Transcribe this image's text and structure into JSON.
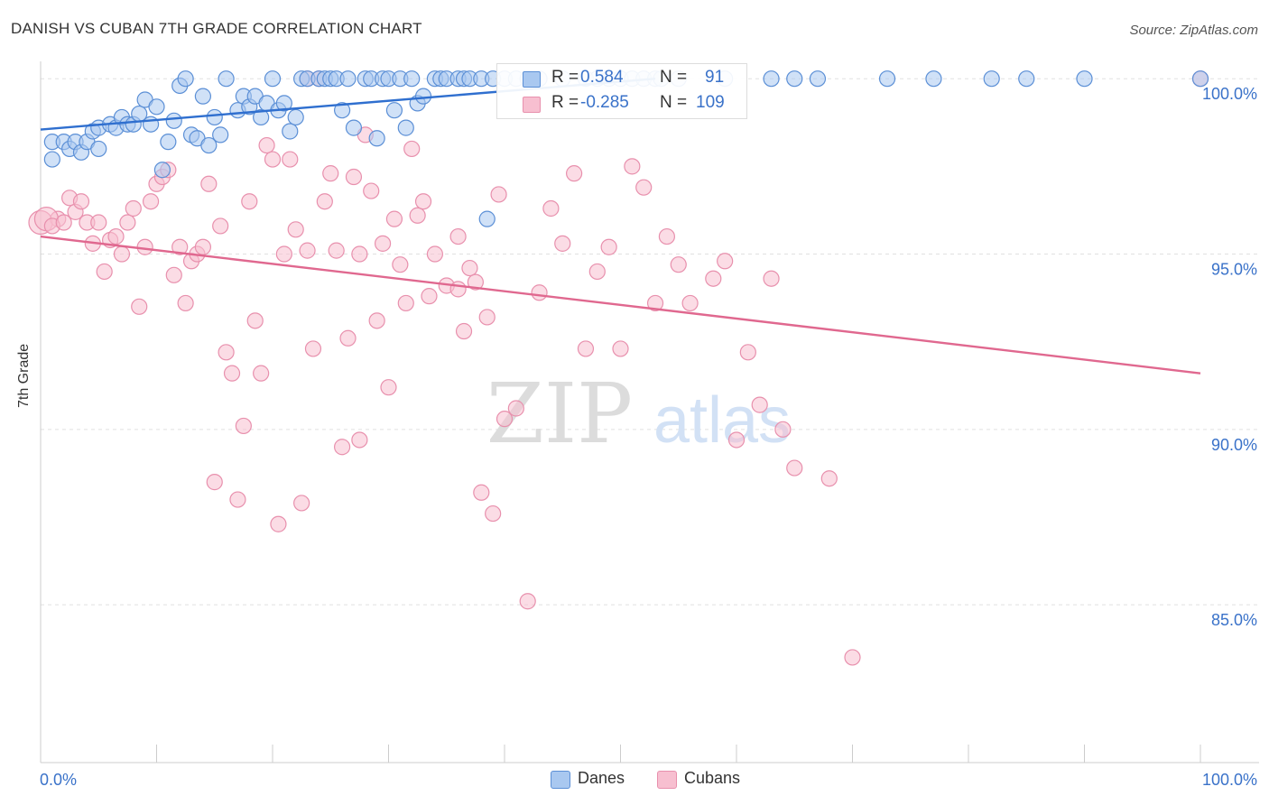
{
  "chart_data": {
    "type": "scatter",
    "title": "DANISH VS CUBAN 7TH GRADE CORRELATION CHART",
    "source": "Source: ZipAtlas.com",
    "xlabel": "",
    "ylabel": "7th Grade",
    "xlim": [
      0,
      100
    ],
    "ylim": [
      80.5,
      100.7
    ],
    "x_tick_labels": {
      "left": "0.0%",
      "right": "100.0%"
    },
    "y_ticks": [
      {
        "value": 100,
        "label": "100.0%"
      },
      {
        "value": 95,
        "label": "95.0%"
      },
      {
        "value": 90,
        "label": "90.0%"
      },
      {
        "value": 85,
        "label": "85.0%"
      }
    ],
    "watermark": {
      "zip": "ZIP",
      "atlas": "atlas"
    },
    "colors": {
      "danes_fill": "#a9c8f0",
      "danes_stroke": "#5b8fd6",
      "danes_line": "#2f6fcf",
      "cubans_fill": "#f7bfd0",
      "cubans_stroke": "#e890ad",
      "cubans_line": "#e0688f",
      "text_blue": "#3a72c9",
      "grid": "#e0e0e0"
    },
    "stats_legend": [
      {
        "r_label": "R =",
        "r_value": "0.584",
        "n_label": "N =",
        "n_value": "91"
      },
      {
        "r_label": "R =",
        "r_value": "-0.285",
        "n_label": "N =",
        "n_value": "109"
      }
    ],
    "series": [
      {
        "name": "Danes",
        "trend": {
          "x": [
            0,
            53
          ],
          "y": [
            98.55,
            100.0
          ]
        },
        "points": [
          [
            1,
            98.2
          ],
          [
            1,
            97.7
          ],
          [
            2,
            98.2
          ],
          [
            2.5,
            98.0
          ],
          [
            3,
            98.2
          ],
          [
            3.5,
            97.9
          ],
          [
            4,
            98.2
          ],
          [
            4.5,
            98.5
          ],
          [
            5,
            98.6
          ],
          [
            5,
            98.0
          ],
          [
            6,
            98.7
          ],
          [
            6.5,
            98.6
          ],
          [
            7,
            98.9
          ],
          [
            7.5,
            98.7
          ],
          [
            8,
            98.7
          ],
          [
            8.5,
            99.0
          ],
          [
            9,
            99.4
          ],
          [
            9.5,
            98.7
          ],
          [
            10,
            99.2
          ],
          [
            10.5,
            97.4
          ],
          [
            11,
            98.2
          ],
          [
            11.5,
            98.8
          ],
          [
            12,
            99.8
          ],
          [
            12.5,
            100
          ],
          [
            13,
            98.4
          ],
          [
            13.5,
            98.3
          ],
          [
            14,
            99.5
          ],
          [
            14.5,
            98.1
          ],
          [
            15,
            98.9
          ],
          [
            15.5,
            98.4
          ],
          [
            16,
            100
          ],
          [
            17,
            99.1
          ],
          [
            17.5,
            99.5
          ],
          [
            18,
            99.2
          ],
          [
            18.5,
            99.5
          ],
          [
            19,
            98.9
          ],
          [
            19.5,
            99.3
          ],
          [
            20,
            100
          ],
          [
            20.5,
            99.1
          ],
          [
            21,
            99.3
          ],
          [
            21.5,
            98.5
          ],
          [
            22,
            98.9
          ],
          [
            22.5,
            100
          ],
          [
            23,
            100
          ],
          [
            24,
            100
          ],
          [
            24.5,
            100
          ],
          [
            25,
            100
          ],
          [
            25.5,
            100
          ],
          [
            26,
            99.1
          ],
          [
            26.5,
            100
          ],
          [
            27,
            98.6
          ],
          [
            28,
            100
          ],
          [
            28.5,
            100
          ],
          [
            29,
            98.3
          ],
          [
            29.5,
            100
          ],
          [
            30,
            100
          ],
          [
            30.5,
            99.1
          ],
          [
            31,
            100
          ],
          [
            31.5,
            98.6
          ],
          [
            32,
            100
          ],
          [
            32.5,
            99.3
          ],
          [
            33,
            99.5
          ],
          [
            34,
            100
          ],
          [
            34.5,
            100
          ],
          [
            35,
            100
          ],
          [
            36,
            100
          ],
          [
            36.5,
            100
          ],
          [
            37,
            100
          ],
          [
            38,
            100
          ],
          [
            39,
            100
          ],
          [
            40,
            100
          ],
          [
            41,
            100
          ],
          [
            42,
            100
          ],
          [
            43,
            100
          ],
          [
            45,
            100
          ],
          [
            47,
            100
          ],
          [
            48,
            100
          ],
          [
            49,
            100
          ],
          [
            50,
            100
          ],
          [
            51,
            100
          ],
          [
            52,
            100
          ],
          [
            53,
            100
          ],
          [
            53.5,
            100
          ],
          [
            55,
            100
          ],
          [
            59,
            100
          ],
          [
            63,
            100
          ],
          [
            65,
            100
          ],
          [
            67,
            100
          ],
          [
            73,
            100
          ],
          [
            77,
            100
          ],
          [
            82,
            100
          ],
          [
            85,
            100
          ],
          [
            90,
            100
          ],
          [
            100,
            100
          ],
          [
            38.5,
            96.0
          ]
        ]
      },
      {
        "name": "Cubans",
        "trend": {
          "x": [
            0,
            100
          ],
          "y": [
            95.5,
            91.6
          ]
        },
        "points": [
          [
            0,
            95.9
          ],
          [
            1.5,
            96.0
          ],
          [
            2.5,
            96.6
          ],
          [
            3,
            96.2
          ],
          [
            3.5,
            96.5
          ],
          [
            4,
            95.9
          ],
          [
            4.5,
            95.3
          ],
          [
            5,
            95.9
          ],
          [
            5.5,
            94.5
          ],
          [
            6,
            95.4
          ],
          [
            6.5,
            95.5
          ],
          [
            7,
            95.0
          ],
          [
            7.5,
            95.9
          ],
          [
            8,
            96.3
          ],
          [
            8.5,
            93.5
          ],
          [
            9,
            95.2
          ],
          [
            9.5,
            96.5
          ],
          [
            10,
            97.0
          ],
          [
            10.5,
            97.2
          ],
          [
            11,
            97.4
          ],
          [
            11.5,
            94.4
          ],
          [
            12,
            95.2
          ],
          [
            12.5,
            93.6
          ],
          [
            13,
            94.8
          ],
          [
            13.5,
            95.0
          ],
          [
            14,
            95.2
          ],
          [
            14.5,
            97.0
          ],
          [
            15,
            88.5
          ],
          [
            15.5,
            95.8
          ],
          [
            16,
            92.2
          ],
          [
            16.5,
            91.6
          ],
          [
            17,
            88.0
          ],
          [
            17.5,
            90.1
          ],
          [
            18,
            96.5
          ],
          [
            18.5,
            93.1
          ],
          [
            19,
            91.6
          ],
          [
            19.5,
            98.1
          ],
          [
            20,
            97.7
          ],
          [
            20.5,
            87.3
          ],
          [
            21,
            95.0
          ],
          [
            21.5,
            97.7
          ],
          [
            22,
            95.7
          ],
          [
            22.5,
            87.9
          ],
          [
            23,
            100
          ],
          [
            23.5,
            92.3
          ],
          [
            24,
            100
          ],
          [
            24.5,
            96.5
          ],
          [
            25,
            97.3
          ],
          [
            25.5,
            95.1
          ],
          [
            26,
            89.5
          ],
          [
            26.5,
            92.6
          ],
          [
            27,
            97.2
          ],
          [
            27.5,
            89.7
          ],
          [
            28,
            98.4
          ],
          [
            28.5,
            96.8
          ],
          [
            29,
            93.1
          ],
          [
            29.5,
            95.3
          ],
          [
            30,
            91.2
          ],
          [
            30.5,
            96.0
          ],
          [
            31,
            94.7
          ],
          [
            31.5,
            93.6
          ],
          [
            32,
            98.0
          ],
          [
            32.5,
            96.1
          ],
          [
            33,
            96.5
          ],
          [
            33.5,
            93.8
          ],
          [
            34,
            95.0
          ],
          [
            35,
            94.1
          ],
          [
            36,
            95.5
          ],
          [
            36.5,
            92.8
          ],
          [
            37,
            94.6
          ],
          [
            37.5,
            94.2
          ],
          [
            38,
            88.2
          ],
          [
            38.5,
            93.2
          ],
          [
            39,
            87.6
          ],
          [
            39.5,
            96.7
          ],
          [
            40,
            90.3
          ],
          [
            41,
            90.6
          ],
          [
            42,
            85.1
          ],
          [
            43,
            93.9
          ],
          [
            44,
            96.3
          ],
          [
            45,
            95.3
          ],
          [
            46,
            97.3
          ],
          [
            47,
            92.3
          ],
          [
            48,
            94.5
          ],
          [
            49,
            95.2
          ],
          [
            50,
            92.3
          ],
          [
            51,
            97.5
          ],
          [
            52,
            96.9
          ],
          [
            53,
            93.6
          ],
          [
            54,
            95.5
          ],
          [
            55,
            94.7
          ],
          [
            56,
            93.6
          ],
          [
            58,
            94.3
          ],
          [
            59,
            94.8
          ],
          [
            60,
            89.7
          ],
          [
            61,
            92.2
          ],
          [
            62,
            90.7
          ],
          [
            63,
            94.3
          ],
          [
            64,
            90.0
          ],
          [
            65,
            88.9
          ],
          [
            68,
            88.6
          ],
          [
            70,
            83.5
          ],
          [
            100,
            100
          ],
          [
            0.5,
            96.0
          ],
          [
            1,
            95.8
          ],
          [
            2,
            95.9
          ],
          [
            23,
            95.1
          ],
          [
            27.5,
            95.0
          ],
          [
            36,
            94.0
          ]
        ]
      }
    ],
    "legend_entries": [
      "Danes",
      "Cubans"
    ]
  }
}
